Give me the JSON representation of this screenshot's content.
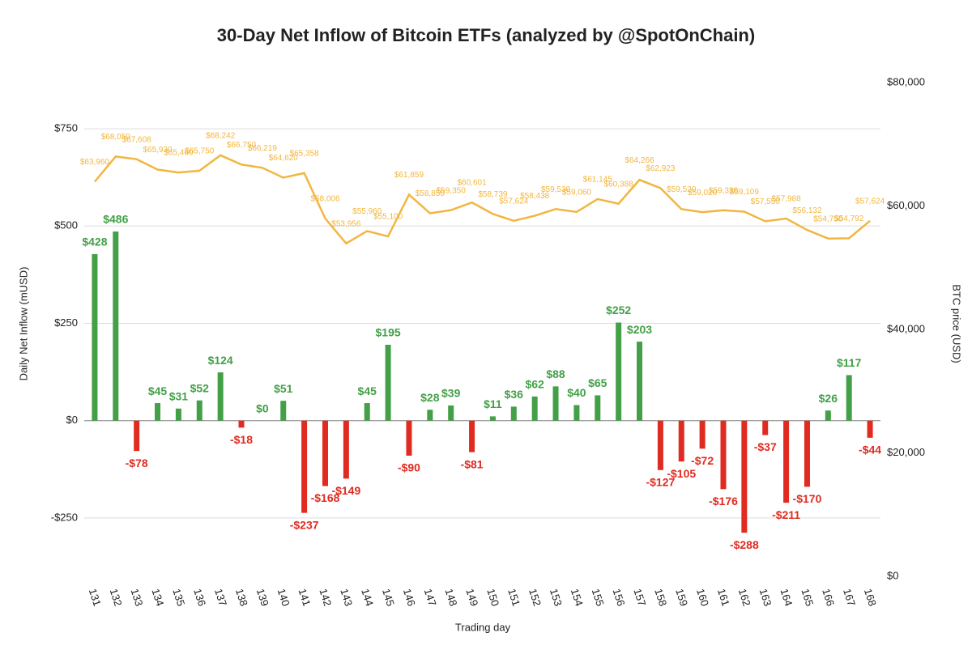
{
  "chart_data": {
    "type": "bar",
    "title": "30-Day Net Inflow of Bitcoin ETFs (analyzed by @SpotOnChain)",
    "x_label": "Trading day",
    "y_label": "Daily Net Inflow (mUSD)",
    "y2_label": "BTC price (USD)",
    "categories": [
      "131",
      "132",
      "133",
      "134",
      "135",
      "136",
      "137",
      "138",
      "139",
      "140",
      "141",
      "142",
      "143",
      "144",
      "145",
      "146",
      "147",
      "148",
      "149",
      "150",
      "151",
      "152",
      "153",
      "154",
      "155",
      "156",
      "157",
      "158",
      "159",
      "160",
      "161",
      "162",
      "163",
      "164",
      "165",
      "166",
      "167",
      "168"
    ],
    "ylim": [
      -400,
      900
    ],
    "yticks": [
      {
        "value": -250,
        "label": "-$250"
      },
      {
        "value": 0,
        "label": "$0"
      },
      {
        "value": 250,
        "label": "$250"
      },
      {
        "value": 500,
        "label": "$500"
      },
      {
        "value": 750,
        "label": "$750"
      }
    ],
    "y2lim": [
      0,
      82000
    ],
    "y2ticks": [
      {
        "value": 0,
        "label": "$0"
      },
      {
        "value": 20000,
        "label": "$20,000"
      },
      {
        "value": 40000,
        "label": "$40,000"
      },
      {
        "value": 60000,
        "label": "$60,000"
      },
      {
        "value": 80000,
        "label": "$80,000"
      }
    ],
    "grid": true,
    "series": [
      {
        "type": "bar",
        "color": "#43a047",
        "negative_color": "#e02b20",
        "values": [
          428,
          486,
          -78,
          45,
          31,
          52,
          124,
          -18,
          0,
          51,
          -237,
          -168,
          -149,
          45,
          195,
          -90,
          28,
          39,
          -81,
          11,
          36,
          62,
          88,
          40,
          65,
          252,
          203,
          -127,
          -105,
          -72,
          -176,
          -288,
          -37,
          -211,
          -170,
          26,
          117,
          -44
        ],
        "value_labels": [
          "$428",
          "$486",
          "-$78",
          "$45",
          "$31",
          "$52",
          "$124",
          "-$18",
          "$0",
          "$51",
          "-$237",
          "-$168",
          "-$149",
          "$45",
          "$195",
          "-$90",
          "$28",
          "$39",
          "-$81",
          "$11",
          "$36",
          "$62",
          "$88",
          "$40",
          "$65",
          "$252",
          "$203",
          "-$127",
          "-$105",
          "-$72",
          "-$176",
          "-$288",
          "-$37",
          "-$211",
          "-$170",
          "$26",
          "$117",
          "-$44"
        ]
      },
      {
        "type": "line",
        "axis": "y2",
        "color": "#f2b640",
        "values": [
          63960,
          68050,
          67608,
          65930,
          65460,
          65750,
          68242,
          66750,
          66219,
          64620,
          65358,
          58006,
          53956,
          55960,
          55100,
          61859,
          58850,
          59350,
          60601,
          58739,
          57624,
          58438,
          59530,
          59060,
          61145,
          60388,
          64266,
          62923,
          59520,
          59020,
          59330,
          59109,
          57550,
          57988,
          56132,
          54750,
          54792,
          57624
        ],
        "value_labels": [
          "$63,960",
          "$68,050",
          "$67,608",
          "$65,930",
          "$65,460",
          "$65,750",
          "$68,242",
          "$66,750",
          "$66,219",
          "$64,620",
          "$65,358",
          "$58,006",
          "$53,956",
          "$55,960",
          "$55,100",
          "$61,859",
          "$58,850",
          "$59,350",
          "$60,601",
          "$58,739",
          "$57,624",
          "$58,438",
          "$59,530",
          "$59,060",
          "$61,145",
          "$60,388",
          "$64,266",
          "$62,923",
          "$59,520",
          "$59,020",
          "$59,330",
          "$59,109",
          "$57,550",
          "$57,988",
          "$56,132",
          "$54,750",
          "$54,792",
          "$57,624"
        ]
      }
    ]
  }
}
